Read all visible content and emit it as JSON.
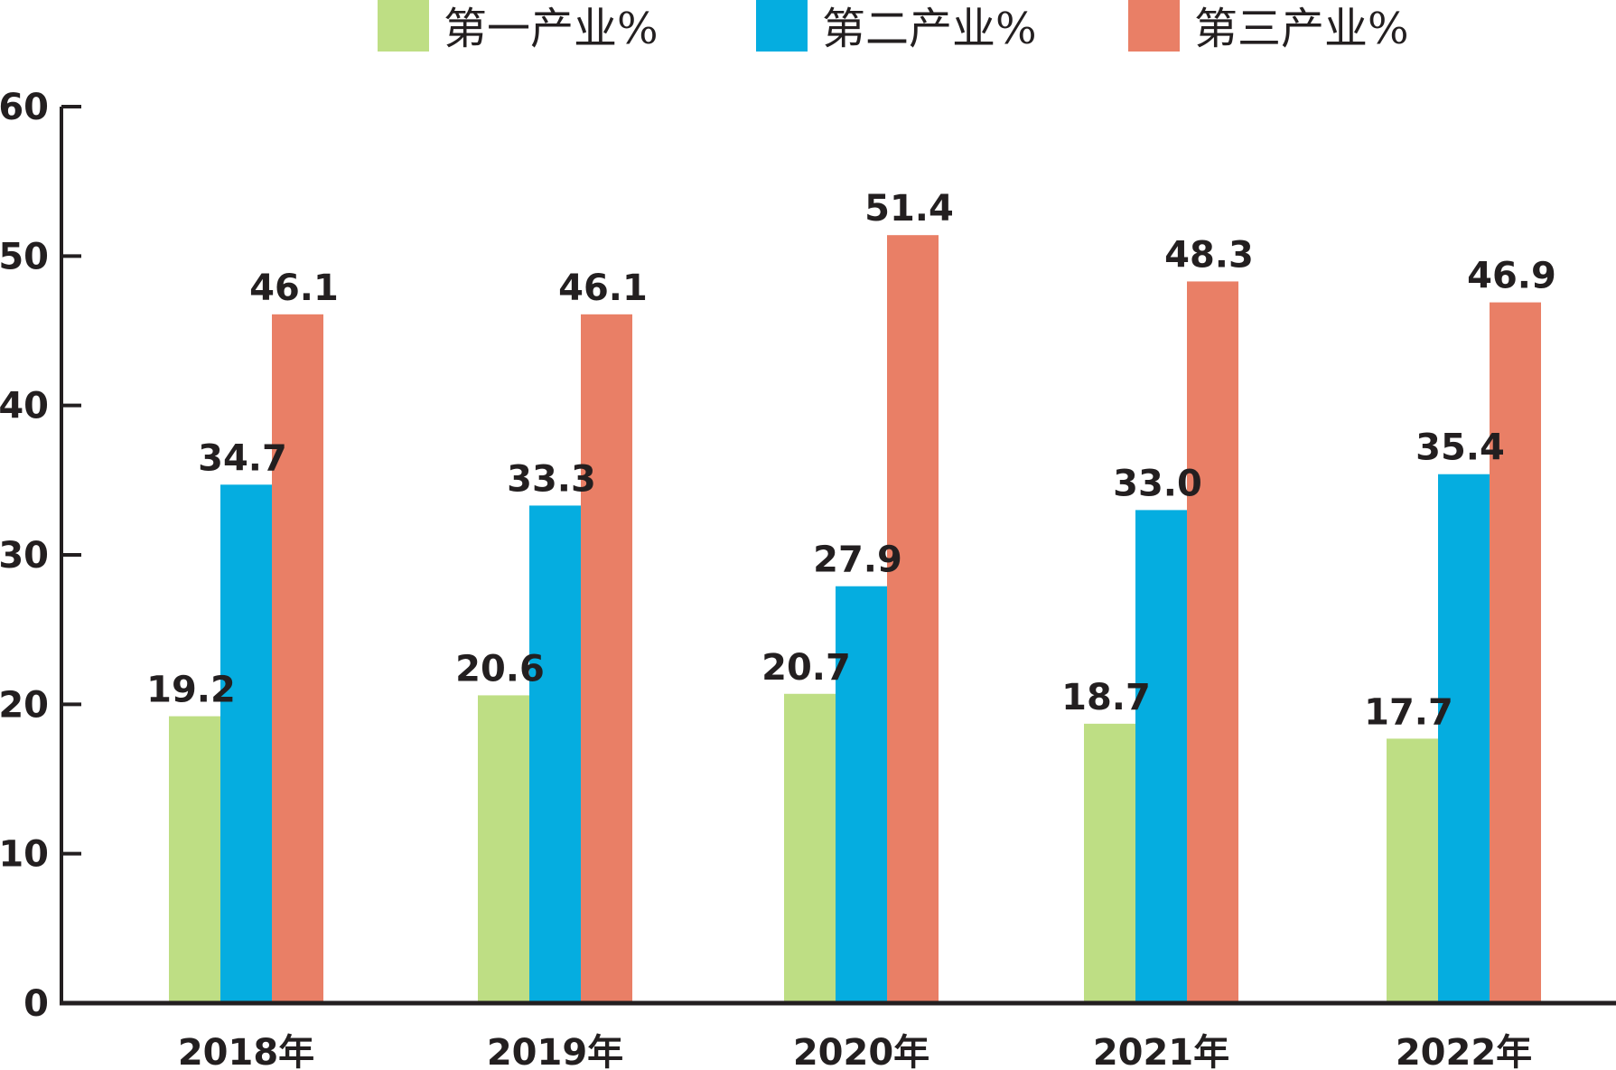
{
  "chart_data": {
    "type": "bar",
    "title": "",
    "xlabel": "",
    "ylabel": "",
    "categories": [
      "2018年",
      "2019年",
      "2020年",
      "2021年",
      "2022年"
    ],
    "series": [
      {
        "name": "第一产业%",
        "color": "#bede84",
        "values": [
          19.2,
          20.6,
          20.7,
          18.7,
          17.7
        ],
        "labels": [
          "19.2",
          "20.6",
          "20.7",
          "18.7",
          "17.7"
        ]
      },
      {
        "name": "第二产业%",
        "color": "#05ade0",
        "values": [
          34.7,
          33.3,
          27.9,
          33.0,
          35.4
        ],
        "labels": [
          "34.7",
          "33.3",
          "27.9",
          "33.0",
          "35.4"
        ]
      },
      {
        "name": "第三产业%",
        "color": "#e97f66",
        "values": [
          46.1,
          46.1,
          51.4,
          48.3,
          46.9
        ],
        "labels": [
          "46.1",
          "46.1",
          "51.4",
          "48.3",
          "46.9"
        ]
      }
    ],
    "ylim": [
      0,
      60
    ],
    "yticks": [
      "0",
      "10",
      "20",
      "30",
      "40",
      "50",
      "60"
    ],
    "grid": false,
    "legend_position": "top-center",
    "axis_color": "#231f20"
  }
}
